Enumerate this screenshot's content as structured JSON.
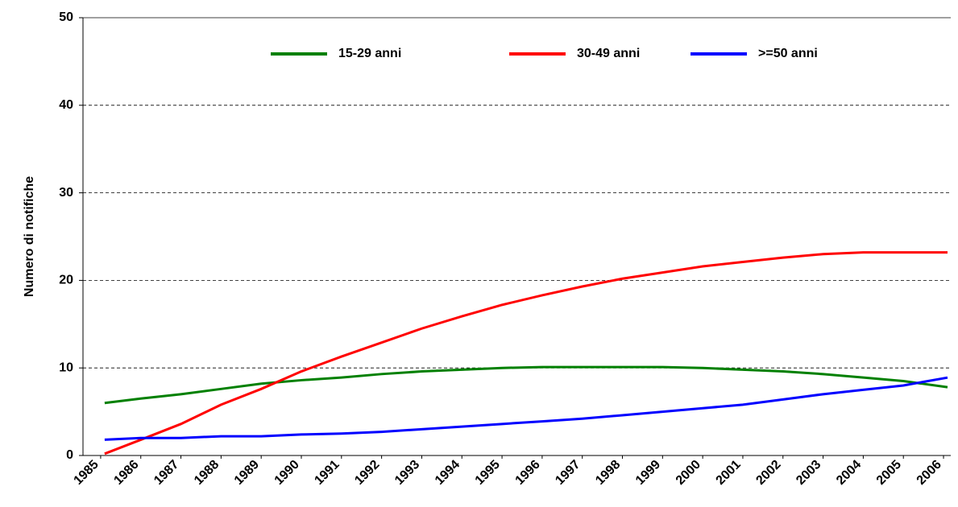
{
  "chart_data": {
    "type": "line",
    "y_label": "Numero di notifiche",
    "x": [
      1985.1,
      1986,
      1987,
      1988,
      1989,
      1990,
      1991,
      1992,
      1993,
      1994,
      1995,
      1996,
      1997,
      1998,
      1999,
      2000,
      2001,
      2002,
      2003,
      2004,
      2005,
      2006.1
    ],
    "series": [
      {
        "name": "15-29 anni",
        "color": "#008000",
        "values": [
          6.0,
          6.5,
          7.0,
          7.6,
          8.2,
          8.6,
          8.9,
          9.3,
          9.6,
          9.8,
          10.0,
          10.1,
          10.1,
          10.1,
          10.1,
          10.0,
          9.8,
          9.6,
          9.3,
          8.9,
          8.5,
          7.8
        ]
      },
      {
        "name": "30-49 anni",
        "color": "#ff0000",
        "values": [
          0.2,
          1.8,
          3.6,
          5.8,
          7.6,
          9.6,
          11.3,
          12.9,
          14.5,
          15.9,
          17.2,
          18.3,
          19.3,
          20.2,
          20.9,
          21.6,
          22.1,
          22.6,
          23.0,
          23.2,
          23.2,
          23.2
        ]
      },
      {
        "name": ">=50 anni",
        "color": "#0000ff",
        "values": [
          1.8,
          2.0,
          2.0,
          2.2,
          2.2,
          2.4,
          2.5,
          2.7,
          3.0,
          3.3,
          3.6,
          3.9,
          4.2,
          4.6,
          5.0,
          5.4,
          5.8,
          6.4,
          7.0,
          7.5,
          8.0,
          8.9
        ]
      }
    ],
    "xlim": [
      1984.56,
      2006.18
    ],
    "xticks": [
      1985,
      1986,
      1987,
      1988,
      1989,
      1990,
      1991,
      1992,
      1993,
      1994,
      1995,
      1996,
      1997,
      1998,
      1999,
      2000,
      2001,
      2002,
      2003,
      2004,
      2005,
      2006
    ],
    "ylim": [
      0,
      50
    ],
    "yticks": [
      0,
      10,
      20,
      30,
      40,
      50
    ],
    "grid": true,
    "legend": "top"
  }
}
